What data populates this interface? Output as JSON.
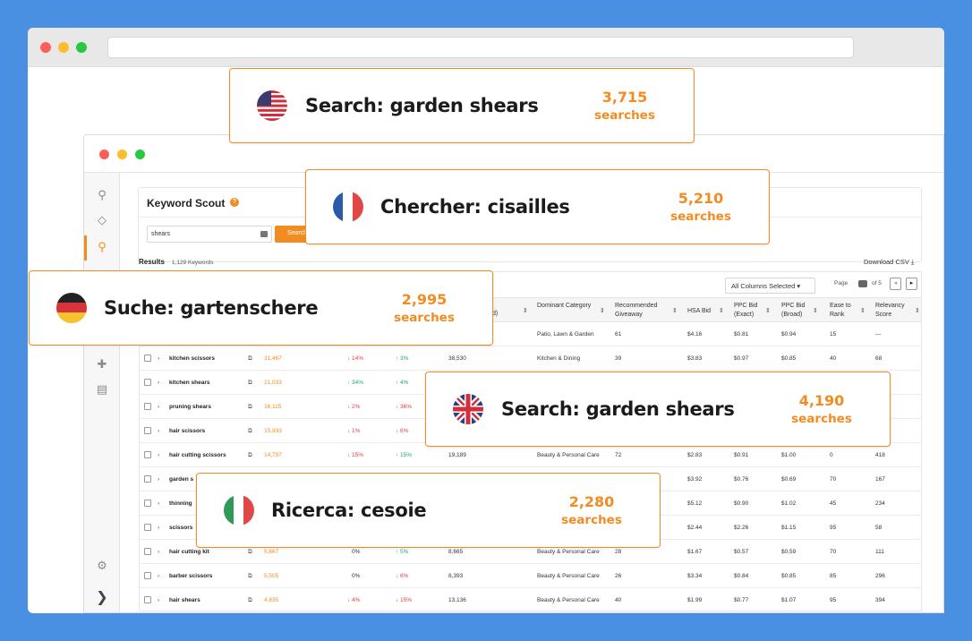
{
  "app": {
    "title": "Keyword Scout",
    "search_value": "shears",
    "search_button": "Search",
    "results_label": "Results",
    "results_count": "1,129 Keywords",
    "download_label": "Download CSV",
    "columns_select": "All Columns Selected",
    "page_label": "Page",
    "page_of": "of 5"
  },
  "table": {
    "headers": [
      "Dominant Category",
      "Recommended Giveaway",
      "HSA Bid",
      "PPC Bid (Exact)",
      "PPC Bid (Broad)",
      "Ease to Rank",
      "Relevancy Score"
    ],
    "partial_header": "d)",
    "rows": [
      {
        "kw": "",
        "sv": "",
        "d1": "",
        "d2": "",
        "sv2": "",
        "cat": "Patio, Lawn & Garden",
        "give": "61",
        "hsa": "$4.16",
        "exact": "$0.81",
        "broad": "$0.94",
        "ease": "15",
        "rel": "---"
      },
      {
        "kw": "kitchen scissors",
        "sv": "31,467",
        "d1": "14%",
        "d2": "3%",
        "sv2": "38,530",
        "cat": "Kitchen & Dining",
        "give": "39",
        "hsa": "$3.83",
        "exact": "$0.97",
        "broad": "$0.85",
        "ease": "40",
        "rel": "68"
      },
      {
        "kw": "kitchen shears",
        "sv": "21,033",
        "d1": "34%",
        "d2": "4%",
        "sv2": "",
        "cat": "",
        "give": "",
        "hsa": "",
        "exact": "",
        "broad": "",
        "ease": "",
        "rel": ""
      },
      {
        "kw": "pruning shears",
        "sv": "16,115",
        "d1": "2%",
        "d2": "36%",
        "sv2": "",
        "cat": "",
        "give": "",
        "hsa": "",
        "exact": "",
        "broad": "",
        "ease": "",
        "rel": ""
      },
      {
        "kw": "hair scissors",
        "sv": "15,933",
        "d1": "1%",
        "d2": "6%",
        "sv2": "",
        "cat": "",
        "give": "",
        "hsa": "",
        "exact": "",
        "broad": "",
        "ease": "",
        "rel": ""
      },
      {
        "kw": "hair cutting scissors",
        "sv": "14,797",
        "d1": "15%",
        "d2": "15%",
        "sv2": "19,189",
        "cat": "Beauty & Personal Care",
        "give": "72",
        "hsa": "$2.83",
        "exact": "$0.91",
        "broad": "$1.00",
        "ease": "0",
        "rel": "418"
      },
      {
        "kw": "garden s",
        "sv": "",
        "d1": "",
        "d2": "",
        "sv2": "",
        "cat": "",
        "give": "",
        "hsa": "$3.92",
        "exact": "$0.76",
        "broad": "$0.69",
        "ease": "70",
        "rel": "167"
      },
      {
        "kw": "thinning",
        "sv": "",
        "d1": "",
        "d2": "",
        "sv2": "",
        "cat": "",
        "give": "",
        "hsa": "$5.12",
        "exact": "$0.90",
        "broad": "$1.02",
        "ease": "45",
        "rel": "234"
      },
      {
        "kw": "scissors",
        "sv": "",
        "d1": "",
        "d2": "",
        "sv2": "",
        "cat": "",
        "give": "",
        "hsa": "$2.44",
        "exact": "$2.26",
        "broad": "$1.15",
        "ease": "95",
        "rel": "58"
      },
      {
        "kw": "hair cutting kit",
        "sv": "5,667",
        "d1": "0%",
        "d2": "5%",
        "sv2": "8,665",
        "cat": "Beauty & Personal Care",
        "give": "28",
        "hsa": "$1.67",
        "exact": "$0.57",
        "broad": "$0.59",
        "ease": "70",
        "rel": "111"
      },
      {
        "kw": "barber scissors",
        "sv": "5,505",
        "d1": "0%",
        "d2": "6%",
        "sv2": "8,393",
        "cat": "Beauty & Personal Care",
        "give": "26",
        "hsa": "$3.34",
        "exact": "$0.84",
        "broad": "$0.85",
        "ease": "85",
        "rel": "296"
      },
      {
        "kw": "hair shears",
        "sv": "4,835",
        "d1": "4%",
        "d2": "15%",
        "sv2": "13,136",
        "cat": "Beauty & Personal Care",
        "give": "40",
        "hsa": "$1.99",
        "exact": "$0.77",
        "broad": "$1.07",
        "ease": "95",
        "rel": "394"
      }
    ]
  },
  "cards": [
    {
      "flag": "us-flag-icon",
      "title": "Search: garden shears",
      "num": "3,715",
      "unit": "searches"
    },
    {
      "flag": "fr-flag-icon",
      "title": "Chercher: cisailles",
      "num": "5,210",
      "unit": "searches"
    },
    {
      "flag": "de-flag-icon",
      "title": "Suche: gartenschere",
      "num": "2,995",
      "unit": "searches"
    },
    {
      "flag": "uk-flag-icon",
      "title": "Search: garden shears",
      "num": "4,190",
      "unit": "searches"
    },
    {
      "flag": "it-flag-icon",
      "title": "Ricerca: cesoie",
      "num": "2,280",
      "unit": "searches"
    }
  ],
  "colors": {
    "accent": "#f28c22",
    "background": "#4a90e2",
    "down": "#e04040",
    "up": "#1fa86b"
  }
}
